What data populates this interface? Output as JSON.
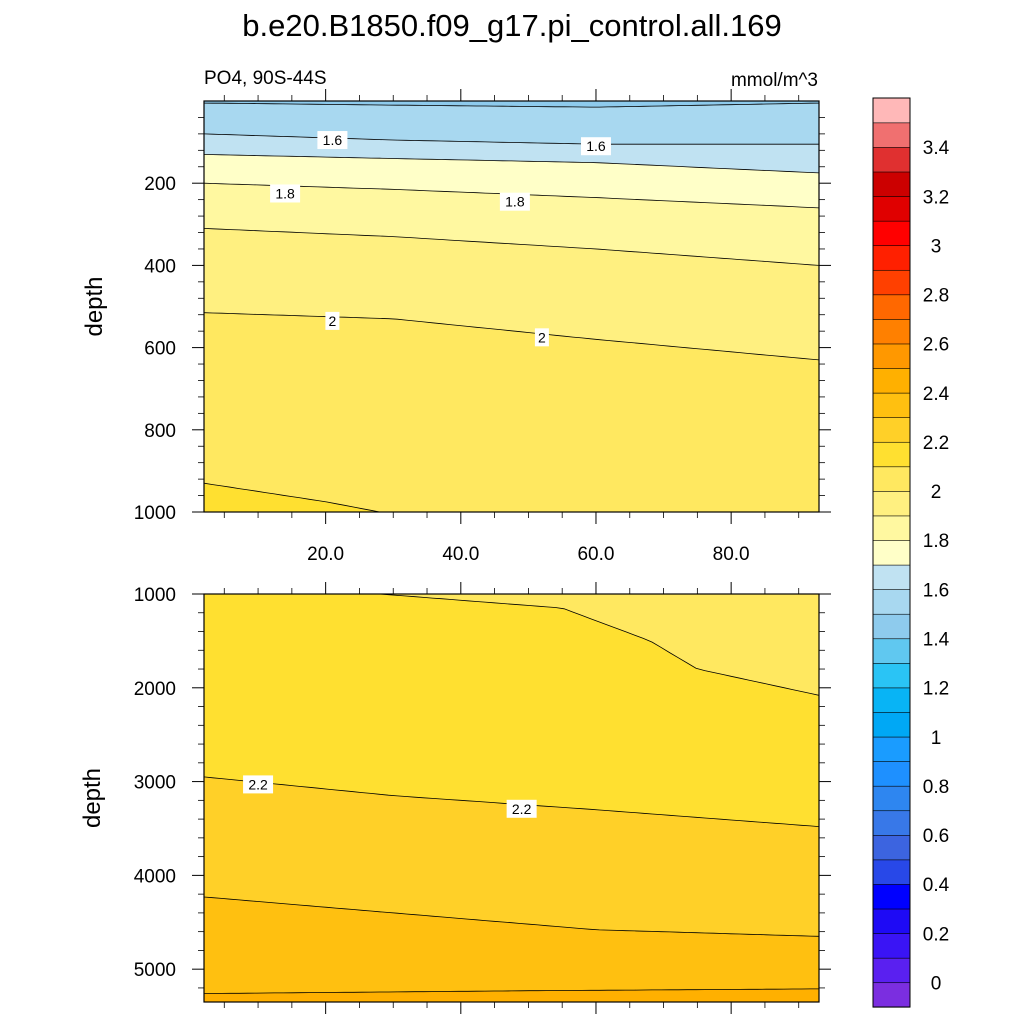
{
  "header": {
    "title": "b.e20.B1850.f09_g17.pi_control.all.169",
    "left_subtitle": "PO4, 90S-44S",
    "right_subtitle": "mmol/m^3"
  },
  "chart_data": {
    "type": "contour",
    "variable": "PO4",
    "region": "90S-44S",
    "units": "mmol/m^3",
    "x_axis": {
      "range": [
        2,
        93
      ],
      "tick_values": [
        20,
        40,
        60,
        80
      ],
      "tick_labels": [
        "20.0",
        "40.0",
        "60.0",
        "80.0"
      ]
    },
    "panels": [
      {
        "name": "upper",
        "ylabel": "depth",
        "y_range": [
          0,
          1000
        ],
        "y_tick_values": [
          200,
          400,
          600,
          800,
          1000
        ],
        "y_tick_labels": [
          "200",
          "400",
          "600",
          "800",
          "1000"
        ],
        "contours": [
          {
            "level": 1.5,
            "depth": [
              [
                2,
                5
              ],
              [
                30,
                10
              ],
              [
                60,
                15
              ],
              [
                93,
                5
              ]
            ]
          },
          {
            "level": 1.6,
            "depth": [
              [
                2,
                80
              ],
              [
                30,
                95
              ],
              [
                60,
                105
              ],
              [
                93,
                105
              ]
            ]
          },
          {
            "level": 1.7,
            "depth": [
              [
                2,
                130
              ],
              [
                30,
                140
              ],
              [
                60,
                150
              ],
              [
                93,
                175
              ]
            ]
          },
          {
            "level": 1.8,
            "depth": [
              [
                2,
                200
              ],
              [
                30,
                215
              ],
              [
                60,
                235
              ],
              [
                93,
                260
              ]
            ]
          },
          {
            "level": 1.9,
            "depth": [
              [
                2,
                310
              ],
              [
                30,
                330
              ],
              [
                60,
                360
              ],
              [
                93,
                400
              ]
            ]
          },
          {
            "level": 2.0,
            "depth": [
              [
                2,
                515
              ],
              [
                30,
                530
              ],
              [
                60,
                580
              ],
              [
                93,
                630
              ]
            ]
          },
          {
            "level": 2.1,
            "depth": [
              [
                2,
                930
              ],
              [
                20,
                975
              ],
              [
                28,
                1000
              ]
            ]
          }
        ],
        "contour_labels": [
          {
            "text": "1.6",
            "x": 21,
            "depth": 95
          },
          {
            "text": "1.6",
            "x": 60,
            "depth": 110
          },
          {
            "text": "1.8",
            "x": 14,
            "depth": 225
          },
          {
            "text": "1.8",
            "x": 48,
            "depth": 245
          },
          {
            "text": "2",
            "x": 21,
            "depth": 535
          },
          {
            "text": "2",
            "x": 52,
            "depth": 575
          }
        ]
      },
      {
        "name": "lower",
        "ylabel": "depth",
        "y_range": [
          1000,
          5350
        ],
        "y_tick_values": [
          1000,
          2000,
          3000,
          4000,
          5000
        ],
        "y_tick_labels": [
          "1000",
          "2000",
          "3000",
          "4000",
          "5000"
        ],
        "contours": [
          {
            "level": 2.1,
            "depth": [
              [
                28,
                1000
              ],
              [
                55,
                1150
              ],
              [
                68,
                1500
              ],
              [
                75,
                1800
              ],
              [
                93,
                2080
              ]
            ]
          },
          {
            "level": 2.2,
            "depth": [
              [
                2,
                2950
              ],
              [
                30,
                3150
              ],
              [
                60,
                3300
              ],
              [
                93,
                3480
              ]
            ]
          },
          {
            "level": 2.3,
            "depth": [
              [
                2,
                4230
              ],
              [
                30,
                4400
              ],
              [
                60,
                4580
              ],
              [
                93,
                4650
              ]
            ]
          },
          {
            "level": 2.4,
            "depth": [
              [
                2,
                5260
              ],
              [
                50,
                5230
              ],
              [
                93,
                5210
              ]
            ]
          }
        ],
        "contour_labels": [
          {
            "text": "2.2",
            "x": 10,
            "depth": 3030
          },
          {
            "text": "2.2",
            "x": 49,
            "depth": 3290
          }
        ]
      }
    ],
    "colorbar": {
      "levels": [
        0,
        0.1,
        0.2,
        0.3,
        0.4,
        0.5,
        0.6,
        0.7,
        0.8,
        0.9,
        1,
        1.1,
        1.2,
        1.3,
        1.4,
        1.5,
        1.6,
        1.7,
        1.8,
        1.9,
        2,
        2.1,
        2.2,
        2.3,
        2.4,
        2.5,
        2.6,
        2.7,
        2.8,
        2.9,
        3,
        3.1,
        3.2,
        3.3,
        3.4,
        3.5
      ],
      "colors": [
        "#7b2ee0",
        "#5a20f0",
        "#3a14f5",
        "#1e0af5",
        "#0000ff",
        "#2848e8",
        "#3c64e0",
        "#3878e8",
        "#2e86f0",
        "#1e90ff",
        "#1a9cff",
        "#00a8f5",
        "#08b4f5",
        "#2ac4f5",
        "#60c8f0",
        "#8ecbed",
        "#a8d8f0",
        "#c0e2f2",
        "#ffffc8",
        "#fff8a0",
        "#fff080",
        "#ffe860",
        "#ffe030",
        "#ffd028",
        "#ffc010",
        "#ffb000",
        "#ff9800",
        "#ff8000",
        "#ff6800",
        "#ff4000",
        "#ff2000",
        "#ff0000",
        "#e00000",
        "#cc0000",
        "#e03030",
        "#f07070",
        "#ffb8b8"
      ],
      "tick_labels": [
        "0",
        "0.2",
        "0.4",
        "0.6",
        "0.8",
        "1",
        "1.2",
        "1.4",
        "1.6",
        "1.8",
        "2",
        "2.2",
        "2.4",
        "2.6",
        "2.8",
        "3",
        "3.2",
        "3.4"
      ]
    }
  }
}
